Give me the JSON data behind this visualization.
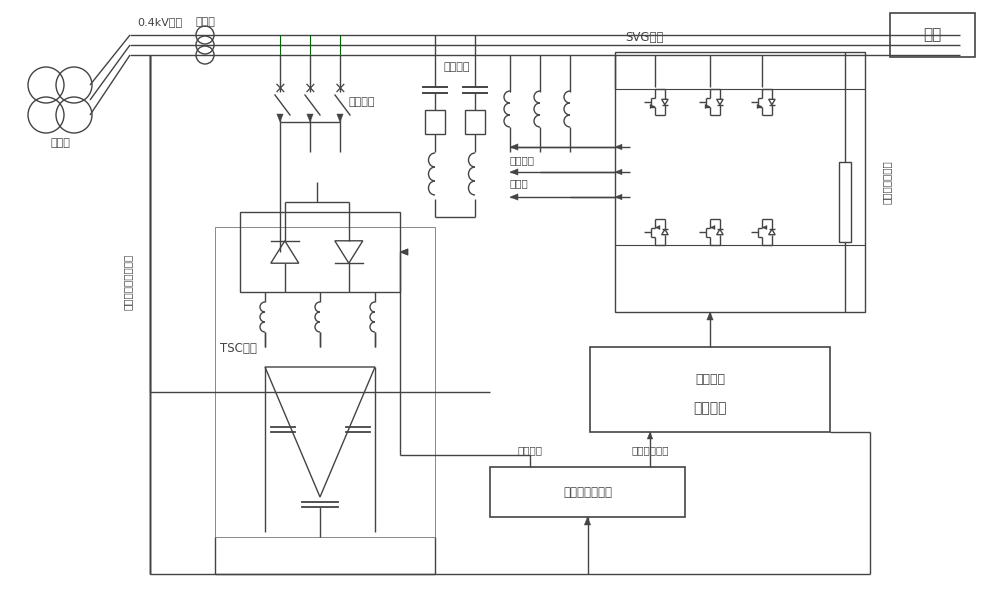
{
  "bg_color": "#ffffff",
  "lc": "#444444",
  "lc_green": "#006600",
  "labels": {
    "transformer": "变压器",
    "system": "0.4kV系统",
    "transducer": "互感器",
    "load": "负载",
    "filter_branch": "滤波支路",
    "reactive_power": "无功功率",
    "output_voltage": "输出电压",
    "reactor": "电抗器",
    "svg_section": "SVG部分",
    "self_commutated": "自换相桥式电路",
    "tsc_section": "TSC部分",
    "drive_signal": "驱动信号",
    "drive_module": "驱动模块",
    "trigger_signal": "触发信号",
    "reactive_ref": "无功参考指令",
    "reactive_controller": "无功补偿控制器",
    "voltage_current": "电压、电流模拟信号"
  }
}
